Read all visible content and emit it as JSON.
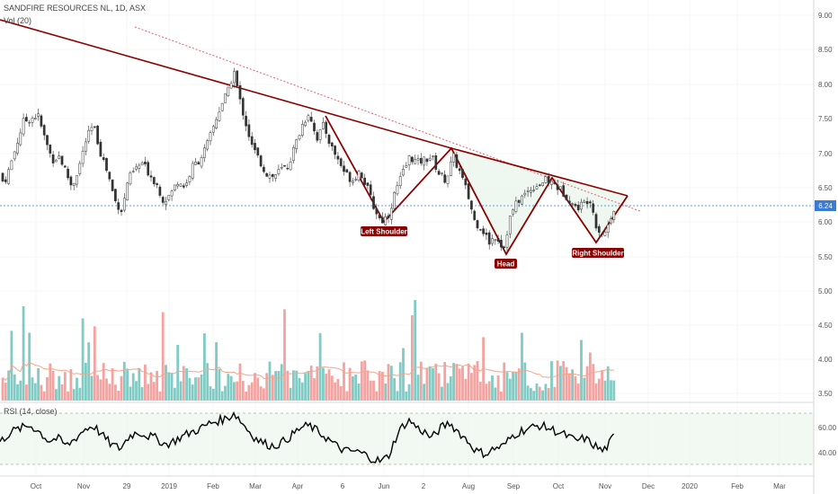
{
  "chart_data": {
    "type": "candlestick",
    "title": "SANDFIRE RESOURCES NL, 1D, ASX",
    "volume_label": "Vol (20)",
    "rsi_label": "RSI (14, close)",
    "last_price": "6.24",
    "y_ticks": [
      "9.00",
      "8.50",
      "8.00",
      "7.50",
      "7.00",
      "6.50",
      "6.00",
      "5.50",
      "5.00",
      "4.50",
      "4.00",
      "3.50"
    ],
    "rsi_ticks": [
      "60.00",
      "40.00"
    ],
    "x_ticks": [
      "Oct",
      "Nov",
      "29",
      "2019",
      "Feb",
      "Mar",
      "Apr",
      "6",
      "Jun",
      "2",
      "Aug",
      "Sep",
      "Oct",
      "Nov",
      "Dec",
      "2020",
      "Feb",
      "Mar"
    ],
    "annotations": [
      "Left Shoulder",
      "Head",
      "Right Shoulder"
    ],
    "price_path": [
      [
        0,
        6.7
      ],
      [
        4,
        6.55
      ],
      [
        10,
        6.75
      ],
      [
        18,
        7.1
      ],
      [
        26,
        7.45
      ],
      [
        34,
        7.5
      ],
      [
        42,
        7.55
      ],
      [
        50,
        7.2
      ],
      [
        58,
        6.9
      ],
      [
        66,
        6.95
      ],
      [
        74,
        6.7
      ],
      [
        80,
        6.5
      ],
      [
        88,
        6.8
      ],
      [
        96,
        7.2
      ],
      [
        104,
        7.4
      ],
      [
        112,
        7.0
      ],
      [
        120,
        6.7
      ],
      [
        128,
        6.3
      ],
      [
        136,
        6.15
      ],
      [
        142,
        6.6
      ],
      [
        150,
        6.75
      ],
      [
        158,
        6.85
      ],
      [
        166,
        6.7
      ],
      [
        174,
        6.55
      ],
      [
        182,
        6.3
      ],
      [
        190,
        6.4
      ],
      [
        198,
        6.6
      ],
      [
        206,
        6.5
      ],
      [
        214,
        6.8
      ],
      [
        222,
        6.9
      ],
      [
        230,
        7.1
      ],
      [
        238,
        7.4
      ],
      [
        246,
        7.7
      ],
      [
        254,
        7.9
      ],
      [
        260,
        8.2
      ],
      [
        266,
        7.8
      ],
      [
        272,
        7.5
      ],
      [
        280,
        7.1
      ],
      [
        288,
        6.9
      ],
      [
        296,
        6.7
      ],
      [
        304,
        6.65
      ],
      [
        312,
        6.75
      ],
      [
        320,
        6.8
      ],
      [
        328,
        7.1
      ],
      [
        336,
        7.4
      ],
      [
        344,
        7.6
      ],
      [
        352,
        7.2
      ],
      [
        360,
        7.4
      ],
      [
        368,
        7.1
      ],
      [
        376,
        6.9
      ],
      [
        384,
        6.7
      ],
      [
        392,
        6.6
      ],
      [
        400,
        6.75
      ],
      [
        408,
        6.5
      ],
      [
        416,
        6.2
      ],
      [
        424,
        6.0
      ],
      [
        432,
        6.1
      ],
      [
        440,
        6.45
      ],
      [
        448,
        6.7
      ],
      [
        456,
        6.95
      ],
      [
        464,
        6.85
      ],
      [
        472,
        6.9
      ],
      [
        480,
        6.95
      ],
      [
        488,
        6.7
      ],
      [
        496,
        6.6
      ],
      [
        504,
        6.95
      ],
      [
        512,
        6.7
      ],
      [
        520,
        6.4
      ],
      [
        528,
        6.0
      ],
      [
        536,
        5.9
      ],
      [
        544,
        5.7
      ],
      [
        552,
        5.8
      ],
      [
        560,
        5.6
      ],
      [
        568,
        6.1
      ],
      [
        576,
        6.3
      ],
      [
        584,
        6.4
      ],
      [
        592,
        6.5
      ],
      [
        600,
        6.55
      ],
      [
        608,
        6.6
      ],
      [
        616,
        6.55
      ],
      [
        624,
        6.45
      ],
      [
        632,
        6.35
      ],
      [
        640,
        6.2
      ],
      [
        648,
        6.25
      ],
      [
        656,
        6.35
      ],
      [
        664,
        5.9
      ],
      [
        672,
        5.8
      ],
      [
        680,
        6.1
      ],
      [
        684,
        6.24
      ]
    ],
    "rsi_path": [
      [
        0,
        47
      ],
      [
        12,
        55
      ],
      [
        24,
        58
      ],
      [
        34,
        60
      ],
      [
        44,
        55
      ],
      [
        54,
        48
      ],
      [
        64,
        50
      ],
      [
        74,
        44
      ],
      [
        84,
        50
      ],
      [
        94,
        57
      ],
      [
        104,
        60
      ],
      [
        114,
        52
      ],
      [
        124,
        45
      ],
      [
        134,
        42
      ],
      [
        144,
        52
      ],
      [
        154,
        55
      ],
      [
        164,
        52
      ],
      [
        174,
        50
      ],
      [
        184,
        45
      ],
      [
        194,
        48
      ],
      [
        204,
        52
      ],
      [
        214,
        55
      ],
      [
        224,
        58
      ],
      [
        234,
        62
      ],
      [
        244,
        64
      ],
      [
        254,
        66
      ],
      [
        260,
        70
      ],
      [
        266,
        65
      ],
      [
        274,
        58
      ],
      [
        284,
        50
      ],
      [
        294,
        46
      ],
      [
        304,
        44
      ],
      [
        314,
        47
      ],
      [
        324,
        52
      ],
      [
        334,
        58
      ],
      [
        344,
        60
      ],
      [
        354,
        55
      ],
      [
        364,
        50
      ],
      [
        374,
        44
      ],
      [
        384,
        40
      ],
      [
        394,
        40
      ],
      [
        404,
        38
      ],
      [
        414,
        34
      ],
      [
        424,
        32
      ],
      [
        432,
        36
      ],
      [
        440,
        50
      ],
      [
        448,
        60
      ],
      [
        456,
        64
      ],
      [
        464,
        58
      ],
      [
        472,
        55
      ],
      [
        480,
        50
      ],
      [
        490,
        58
      ],
      [
        500,
        62
      ],
      [
        510,
        55
      ],
      [
        520,
        48
      ],
      [
        530,
        40
      ],
      [
        540,
        38
      ],
      [
        550,
        42
      ],
      [
        560,
        44
      ],
      [
        570,
        52
      ],
      [
        580,
        56
      ],
      [
        590,
        58
      ],
      [
        600,
        60
      ],
      [
        610,
        58
      ],
      [
        620,
        55
      ],
      [
        630,
        52
      ],
      [
        640,
        48
      ],
      [
        650,
        50
      ],
      [
        660,
        45
      ],
      [
        670,
        40
      ],
      [
        676,
        44
      ],
      [
        684,
        53
      ]
    ]
  }
}
